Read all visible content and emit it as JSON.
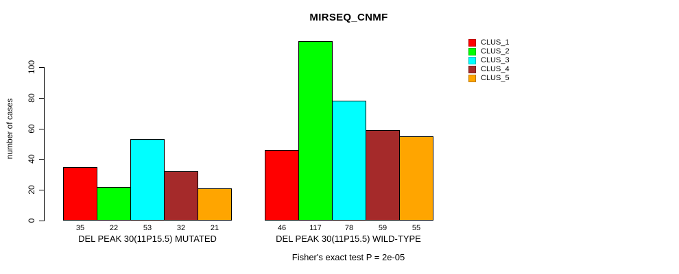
{
  "chart_data": {
    "type": "bar",
    "title": "MIRSEQ_CNMF",
    "ylabel": "number of cases",
    "xlabel": "",
    "ylim": [
      0,
      100
    ],
    "yticks": [
      0,
      20,
      40,
      60,
      80,
      100
    ],
    "grid": false,
    "legend_position": "right-outside",
    "categories": [
      "DEL PEAK 30(11P15.5) MUTATED",
      "DEL PEAK 30(11P15.5) WILD-TYPE"
    ],
    "series": [
      {
        "name": "CLUS_1",
        "color": "#FF0000",
        "values": [
          35,
          46
        ]
      },
      {
        "name": "CLUS_2",
        "color": "#00FF00",
        "values": [
          22,
          117
        ]
      },
      {
        "name": "CLUS_3",
        "color": "#00FFFF",
        "values": [
          53,
          78
        ]
      },
      {
        "name": "CLUS_4",
        "color": "#A52A2A",
        "values": [
          32,
          59
        ]
      },
      {
        "name": "CLUS_5",
        "color": "#FFA500",
        "values": [
          21,
          55
        ]
      }
    ],
    "bar_value_labels_shown": true,
    "annotation": "Fisher's exact test P = 2e-05"
  }
}
